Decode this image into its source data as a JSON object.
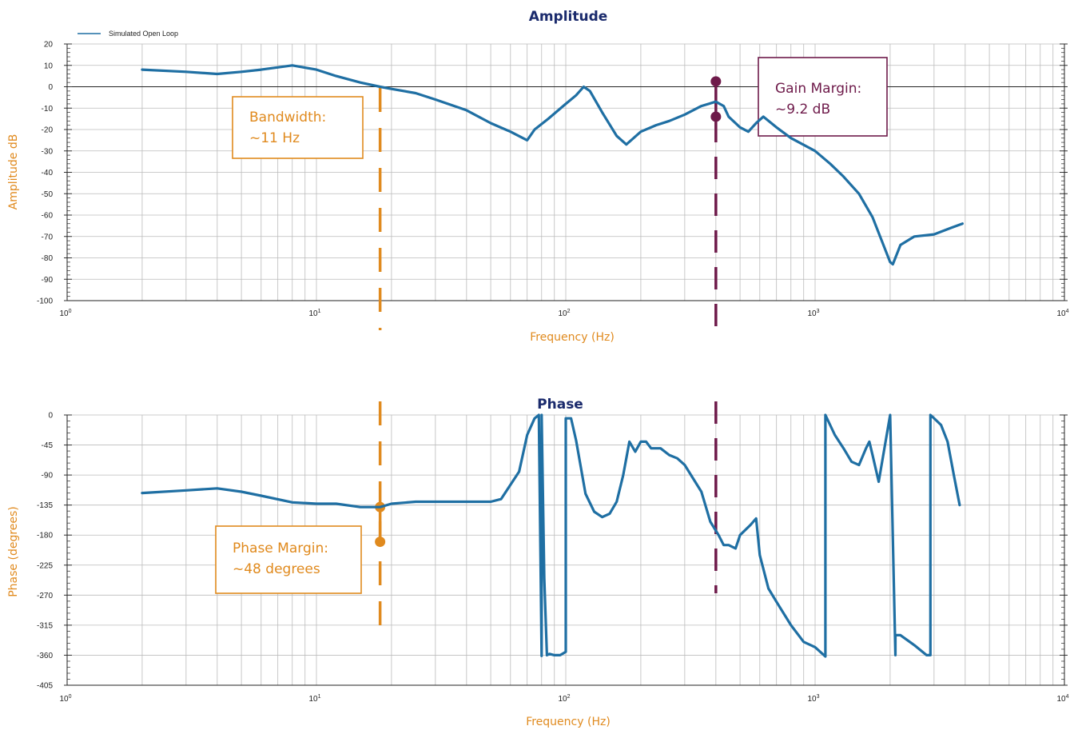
{
  "chart_data": [
    {
      "type": "line",
      "title": "Amplitude",
      "xlabel": "Frequency (Hz)",
      "ylabel": "Amplitude dB",
      "x_scale": "log",
      "xlim": [
        1,
        10000
      ],
      "ylim": [
        -100,
        20
      ],
      "yticks": [
        20,
        10,
        0,
        -10,
        -20,
        -30,
        -40,
        -50,
        -60,
        -70,
        -80,
        -90,
        -100
      ],
      "xticks": [
        {
          "base": "10",
          "exp": "0"
        },
        {
          "base": "10",
          "exp": "1"
        },
        {
          "base": "10",
          "exp": "2"
        },
        {
          "base": "10",
          "exp": "3"
        },
        {
          "base": "10",
          "exp": "4"
        }
      ],
      "grid": true,
      "legend": {
        "position": "top-left",
        "entries": [
          "Simulated Open Loop"
        ]
      },
      "series": [
        {
          "name": "Simulated Open Loop",
          "color": "#1f6fa3",
          "x": [
            2,
            3,
            4,
            5,
            6,
            8,
            10,
            12,
            15,
            18,
            20,
            25,
            30,
            40,
            50,
            60,
            70,
            75,
            85,
            100,
            110,
            118,
            125,
            140,
            160,
            175,
            200,
            230,
            260,
            300,
            350,
            400,
            430,
            450,
            500,
            540,
            580,
            620,
            700,
            800,
            1000,
            1150,
            1300,
            1500,
            1700,
            2000,
            2050,
            2200,
            2500,
            3000,
            3500,
            3900
          ],
          "values": [
            8,
            7,
            6,
            7,
            8,
            10,
            8,
            5,
            2,
            0,
            -1,
            -3,
            -6,
            -11,
            -17,
            -21,
            -25,
            -20,
            -15,
            -8,
            -4,
            0,
            -2,
            -12,
            -23,
            -27,
            -21,
            -18,
            -16,
            -13,
            -9,
            -7,
            -9,
            -14,
            -19,
            -21,
            -17,
            -14,
            -19,
            -24,
            -30,
            -36,
            -42,
            -50,
            -61,
            -82,
            -83,
            -74,
            -70,
            -69,
            -66,
            -64
          ]
        }
      ],
      "annotations": [
        {
          "label_lines": [
            "Bandwidth:",
            "~11 Hz"
          ],
          "x": 18,
          "color": "#e08a1e"
        },
        {
          "label_lines": [
            "Gain Margin:",
            "~9.2 dB"
          ],
          "x": 400,
          "y_from": 2.5,
          "y_to": -14,
          "color": "#6e1a4a"
        }
      ]
    },
    {
      "type": "line",
      "title": "Phase",
      "xlabel": "Frequency (Hz)",
      "ylabel": "Phase (degrees)",
      "x_scale": "log",
      "xlim": [
        1,
        10000
      ],
      "ylim": [
        -405,
        0
      ],
      "yticks": [
        0,
        -45,
        -90,
        -135,
        -180,
        -225,
        -270,
        -315,
        -360,
        -405
      ],
      "xticks": [
        {
          "base": "10",
          "exp": "0"
        },
        {
          "base": "10",
          "exp": "1"
        },
        {
          "base": "10",
          "exp": "2"
        },
        {
          "base": "10",
          "exp": "3"
        },
        {
          "base": "10",
          "exp": "4"
        }
      ],
      "grid": true,
      "series": [
        {
          "name": "Simulated Open Loop",
          "color": "#1f6fa3",
          "x": [
            2,
            3,
            4,
            5,
            6,
            8,
            10,
            12,
            15,
            18,
            20,
            25,
            30,
            40,
            50,
            55,
            65,
            70,
            75,
            78,
            80,
            80,
            82,
            84,
            86,
            90,
            95,
            100,
            100,
            105,
            110,
            120,
            130,
            140,
            150,
            160,
            170,
            180,
            190,
            200,
            210,
            220,
            240,
            260,
            280,
            300,
            350,
            380,
            410,
            430,
            450,
            480,
            500,
            550,
            580,
            600,
            650,
            700,
            800,
            900,
            1000,
            1100,
            1100,
            1200,
            1300,
            1400,
            1500,
            1600,
            1650,
            1700,
            1800,
            2000,
            2100,
            2100,
            2200,
            2500,
            2800,
            2900,
            2900,
            3000,
            3200,
            3400,
            3600,
            3800
          ],
          "values": [
            -117,
            -113,
            -110,
            -115,
            -121,
            -131,
            -133,
            -133,
            -138,
            -138,
            -133,
            -130,
            -130,
            -130,
            -130,
            -126,
            -85,
            -30,
            -5,
            0,
            -361,
            0,
            -245,
            -360,
            -358,
            -360,
            -360,
            -355,
            -5,
            -5,
            -38,
            -118,
            -145,
            -153,
            -148,
            -130,
            -90,
            -40,
            -55,
            -40,
            -40,
            -50,
            -50,
            -60,
            -65,
            -75,
            -115,
            -160,
            -180,
            -195,
            -195,
            -200,
            -180,
            -165,
            -155,
            -210,
            -260,
            -280,
            -315,
            -340,
            -348,
            -362,
            0,
            -30,
            -50,
            -70,
            -75,
            -50,
            -40,
            -60,
            -100,
            0,
            -360,
            -330,
            -330,
            -345,
            -360,
            -360,
            0,
            -5,
            -15,
            -40,
            -90,
            -135
          ]
        }
      ],
      "annotations": [
        {
          "label_lines": [
            "Phase Margin:",
            "~48 degrees"
          ],
          "x": 18,
          "y_from": -138,
          "y_to": -190,
          "color": "#e08a1e"
        }
      ]
    }
  ]
}
